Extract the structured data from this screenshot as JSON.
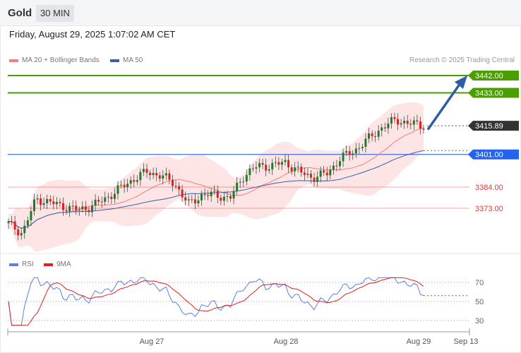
{
  "header": {
    "title": "Gold",
    "timeframe": "30 MIN",
    "datetime": "Friday, August 29, 2025 1:07:02 AM CET"
  },
  "legend": {
    "ma20": "MA 20 + Bollinger Bands",
    "ma50": "MA 50",
    "credit": "Research © 2025 Trading Central",
    "rsi": "RSI",
    "rsi_ma": "9MA"
  },
  "colors": {
    "up": "#1f7a2a",
    "down": "#e0201b",
    "ma20": "#f47c7c",
    "ma50": "#3a5fa8",
    "band": "#fde2e2",
    "resistance": "#4a9e00",
    "current": "#333333",
    "pivot": "#2463eb",
    "support": "#e53935",
    "arrow": "#2e5fa3",
    "rsi": "#5b7fe0",
    "rsi_ma": "#e0201b"
  },
  "levels": [
    {
      "label": "3442.00",
      "value": 3442,
      "type": "resistance"
    },
    {
      "label": "3433.00",
      "value": 3433,
      "type": "resistance"
    },
    {
      "label": "3415.89",
      "value": 3415.89,
      "type": "current"
    },
    {
      "label": "3401.00",
      "value": 3401,
      "type": "pivot"
    },
    {
      "label": "3384.00",
      "value": 3384,
      "type": "support"
    },
    {
      "label": "3373.00",
      "value": 3373,
      "type": "support"
    }
  ],
  "chart_data": {
    "type": "candlestick",
    "title": "Gold 30 MIN",
    "x_ticks": [
      "Aug 27",
      "Aug 28",
      "Aug 29",
      "Sep 13"
    ],
    "ylim": [
      3349,
      3451
    ],
    "closes": [
      3365,
      3360,
      3378,
      3376,
      3374,
      3372,
      3374,
      3378,
      3383,
      3388,
      3392,
      3390,
      3386,
      3375,
      3380,
      3380,
      3378,
      3390,
      3395,
      3395,
      3397,
      3392,
      3389,
      3391,
      3399,
      3403,
      3409,
      3415,
      3419,
      3417,
      3416
    ],
    "rsi_ticks": [
      "70",
      "50",
      "30"
    ],
    "forecast_target": 3442
  }
}
